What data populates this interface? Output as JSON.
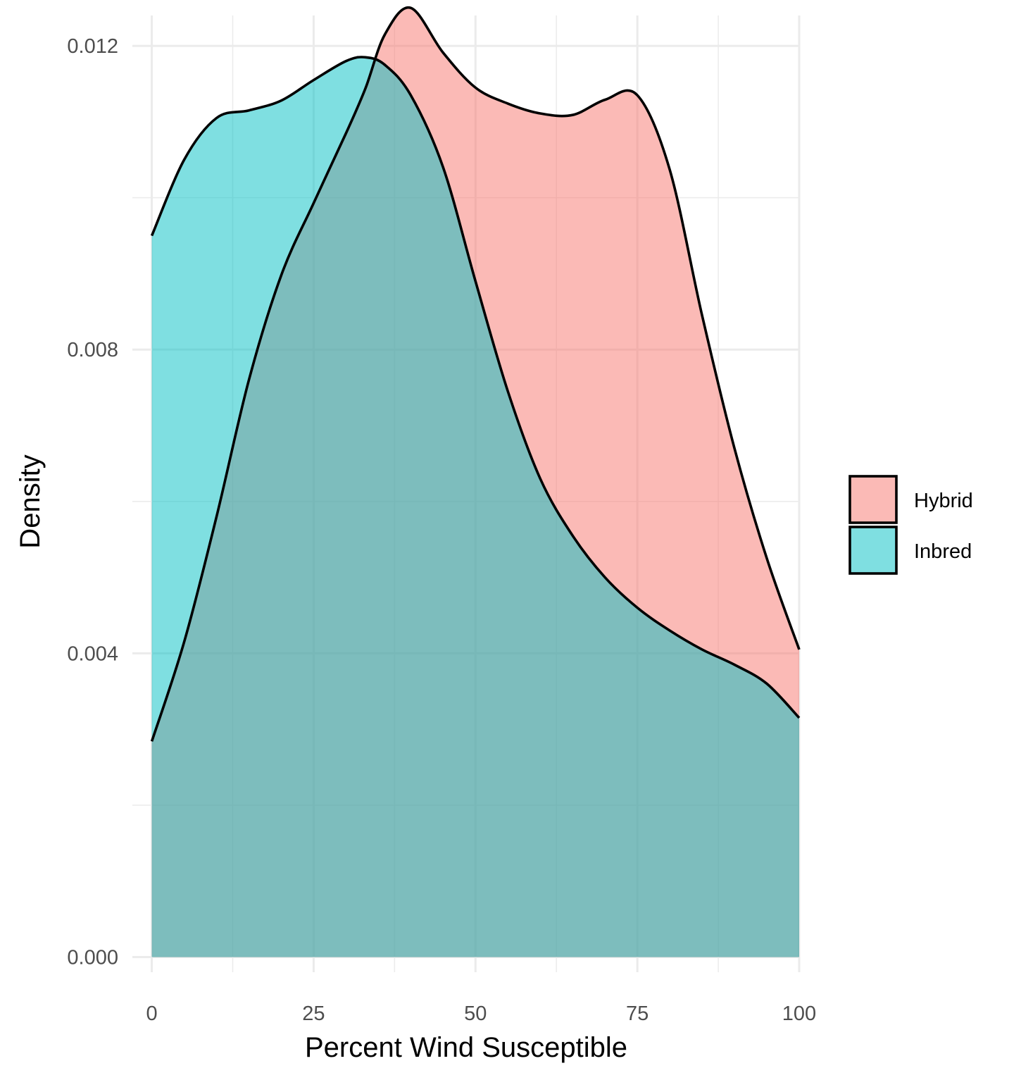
{
  "chart_data": {
    "type": "area",
    "subtype": "density",
    "title": "",
    "xlabel": "Percent Wind Susceptible",
    "ylabel": "Density",
    "xlim": [
      -3,
      100
    ],
    "ylim": [
      -0.0002,
      0.0124
    ],
    "x_ticks": [
      0,
      25,
      50,
      75,
      100
    ],
    "x_tick_labels": [
      "0",
      "25",
      "50",
      "75",
      "100"
    ],
    "x_minor_ticks": [
      12.5,
      37.5,
      62.5,
      87.5
    ],
    "y_ticks": [
      0.0,
      0.004,
      0.008,
      0.012
    ],
    "y_tick_labels": [
      "0.000",
      "0.004",
      "0.008",
      "0.012"
    ],
    "y_minor_ticks": [
      0.002,
      0.006,
      0.01
    ],
    "grid": true,
    "legend_position": "right",
    "series": [
      {
        "name": "Hybrid",
        "color": "#F8766D",
        "opacity": 0.5,
        "x": [
          0,
          5,
          10,
          15,
          20,
          25,
          30,
          33,
          36,
          40,
          45,
          50,
          55,
          60,
          65,
          70,
          75,
          80,
          85,
          90,
          95,
          100
        ],
        "y": [
          0.00284,
          0.00415,
          0.0058,
          0.0076,
          0.00898,
          0.00993,
          0.01085,
          0.01144,
          0.01215,
          0.0125,
          0.01191,
          0.01145,
          0.01124,
          0.01111,
          0.01109,
          0.01129,
          0.01135,
          0.01037,
          0.00845,
          0.0067,
          0.00525,
          0.00405
        ]
      },
      {
        "name": "Inbred",
        "color": "#00BFC4",
        "opacity": 0.5,
        "x": [
          0,
          5,
          10,
          15,
          20,
          25,
          30,
          33,
          36,
          40,
          45,
          50,
          55,
          60,
          65,
          70,
          75,
          80,
          85,
          90,
          95,
          100
        ],
        "y": [
          0.0095,
          0.0105,
          0.01105,
          0.01115,
          0.01128,
          0.01155,
          0.0118,
          0.01185,
          0.01175,
          0.01135,
          0.0104,
          0.0089,
          0.00745,
          0.0063,
          0.00555,
          0.005,
          0.0046,
          0.0043,
          0.00405,
          0.00385,
          0.0036,
          0.00315
        ]
      }
    ]
  }
}
